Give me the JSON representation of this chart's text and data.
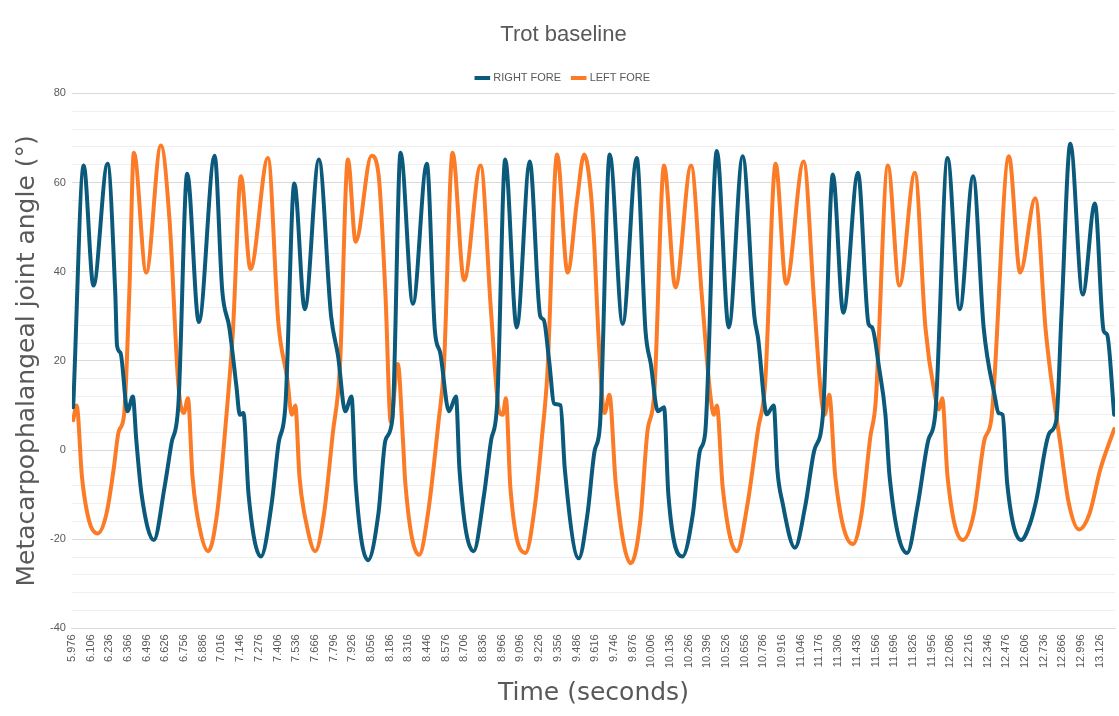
{
  "chart_data": {
    "type": "line",
    "title": "Trot baseline",
    "xlabel": "Time (seconds)",
    "ylabel": "Metacarpophalangeal joint angle (°)",
    "xlim": [
      5.976,
      13.232
    ],
    "xticks": [
      5.976,
      6.106,
      6.236,
      6.366,
      6.496,
      6.626,
      6.756,
      6.886,
      7.016,
      7.146,
      7.276,
      7.406,
      7.536,
      7.666,
      7.796,
      7.926,
      8.056,
      8.186,
      8.316,
      8.446,
      8.576,
      8.706,
      8.836,
      8.966,
      9.096,
      9.226,
      9.356,
      9.486,
      9.616,
      9.746,
      9.876,
      10.006,
      10.136,
      10.266,
      10.396,
      10.526,
      10.656,
      10.786,
      10.916,
      11.046,
      11.176,
      11.306,
      11.436,
      11.566,
      11.696,
      11.826,
      11.956,
      12.086,
      12.216,
      12.346,
      12.476,
      12.606,
      12.736,
      12.866,
      12.996,
      13.126
    ],
    "ylim": [
      -40,
      80
    ],
    "yticks": [
      -40,
      {
        "value": -36,
        "label": null
      },
      {
        "value": -32,
        "label": null
      },
      {
        "value": -28,
        "label": null
      },
      {
        "value": -24,
        "label": null
      },
      -20,
      {
        "value": -16,
        "label": null
      },
      {
        "value": -12,
        "label": null
      },
      {
        "value": -8,
        "label": null
      },
      {
        "value": -4,
        "label": null
      },
      0,
      {
        "value": 4,
        "label": null
      },
      {
        "value": 8,
        "label": null
      },
      {
        "value": 12,
        "label": null
      },
      {
        "value": 16,
        "label": null
      },
      20,
      {
        "value": 24,
        "label": null
      },
      {
        "value": 28,
        "label": null
      },
      {
        "value": 32,
        "label": null
      },
      {
        "value": 36,
        "label": null
      },
      40,
      {
        "value": 44,
        "label": null
      },
      {
        "value": 48,
        "label": null
      },
      {
        "value": 52,
        "label": null
      },
      {
        "value": 56,
        "label": null
      },
      60,
      {
        "value": 64,
        "label": null
      },
      {
        "value": 68,
        "label": null
      },
      {
        "value": 72,
        "label": null
      },
      {
        "value": 76,
        "label": null
      },
      80
    ],
    "grid": "y",
    "legend": "top",
    "marker": "none",
    "line_style": "solid",
    "series": [
      {
        "name": "RIGHT FORE",
        "color": "#0b5a7c",
        "x": [
          5.985,
          6.058,
          6.126,
          6.224,
          6.278,
          6.29,
          6.314,
          6.363,
          6.4,
          6.424,
          6.461,
          6.546,
          6.62,
          6.668,
          6.717,
          6.778,
          6.859,
          6.969,
          7.022,
          7.071,
          7.12,
          7.144,
          7.169,
          7.205,
          7.291,
          7.364,
          7.413,
          7.462,
          7.523,
          7.596,
          7.694,
          7.779,
          7.828,
          7.877,
          7.921,
          7.95,
          8.035,
          8.109,
          8.157,
          8.206,
          8.262,
          8.348,
          8.445,
          8.501,
          8.538,
          8.599,
          8.648,
          8.672,
          8.77,
          8.843,
          8.892,
          8.934,
          8.99,
          9.07,
          9.161,
          9.234,
          9.258,
          9.295,
          9.331,
          9.375,
          9.405,
          9.502,
          9.563,
          9.612,
          9.649,
          9.717,
          9.807,
          9.905,
          9.966,
          10.003,
          10.052,
          10.095,
          10.125,
          10.222,
          10.296,
          10.344,
          10.381,
          10.462,
          10.545,
          10.642,
          10.723,
          10.749,
          10.81,
          10.858,
          10.883,
          10.919,
          11.005,
          11.078,
          11.139,
          11.2,
          11.269,
          11.342,
          11.444,
          11.518,
          11.542,
          11.591,
          11.635,
          11.664,
          11.786,
          11.859,
          11.933,
          11.981,
          12.067,
          12.152,
          12.245,
          12.318,
          12.396,
          12.421,
          12.45,
          12.482,
          12.579,
          12.64,
          12.684,
          12.775,
          12.824,
          12.86,
          12.921,
          13.007,
          13.092,
          13.153,
          13.177,
          13.226
        ],
        "values": [
          9.6,
          63.8,
          36.9,
          64.2,
          34.9,
          23.4,
          21.8,
          8.7,
          12,
          2.2,
          -10,
          -20.2,
          -8.4,
          1.4,
          10.4,
          62,
          28.7,
          66,
          35.7,
          27.5,
          14.4,
          7.9,
          8.3,
          -10,
          -23.9,
          -12.4,
          1.4,
          10.4,
          59.8,
          31.6,
          65.2,
          30,
          21,
          8.7,
          12,
          -7.5,
          -24.7,
          -14,
          2.2,
          7.1,
          66.7,
          32.8,
          64.2,
          26.7,
          21.8,
          8.7,
          12,
          -4.4,
          -22.7,
          -10,
          2.2,
          10.4,
          65.2,
          27.5,
          64.7,
          30,
          29.2,
          20.2,
          10.4,
          10,
          -4.4,
          -24.3,
          -14.2,
          -0.2,
          5.5,
          66.3,
          28.3,
          65.5,
          26.7,
          19.3,
          8.7,
          9.6,
          -10,
          -23.9,
          -14.2,
          -0.2,
          3.8,
          67.1,
          27.5,
          65.9,
          30,
          25.1,
          8,
          10,
          -4.4,
          -11.8,
          -21.9,
          -12.4,
          -0.2,
          7.9,
          61.8,
          30.8,
          62.2,
          28.2,
          27.5,
          18.4,
          7.9,
          -6,
          -23.1,
          -12.4,
          2.2,
          7.9,
          65.5,
          31.6,
          61.4,
          27.5,
          12,
          8.3,
          7.9,
          -7.5,
          -20.2,
          -16.6,
          -11.3,
          3.8,
          6.7,
          30.8,
          68.7,
          34.9,
          55.3,
          26.7,
          25.9,
          7.9
        ]
      },
      {
        "name": "LEFT FORE",
        "color": "#fb7b27",
        "x": [
          5.985,
          6.009,
          6.046,
          6.095,
          6.156,
          6.217,
          6.266,
          6.302,
          6.339,
          6.375,
          6.407,
          6.493,
          6.595,
          6.656,
          6.717,
          6.754,
          6.783,
          6.815,
          6.864,
          6.925,
          6.986,
          7.047,
          7.096,
          7.152,
          7.218,
          7.34,
          7.413,
          7.474,
          7.506,
          7.53,
          7.559,
          7.608,
          7.669,
          7.73,
          7.791,
          7.84,
          7.896,
          7.95,
          8.06,
          8.109,
          8.157,
          8.194,
          8.243,
          8.279,
          8.294,
          8.392,
          8.453,
          8.526,
          8.563,
          8.624,
          8.704,
          8.819,
          8.892,
          8.948,
          8.973,
          8.995,
          9.026,
          9.131,
          9.197,
          9.246,
          9.283,
          9.351,
          9.424,
          9.49,
          9.539,
          9.588,
          9.612,
          9.637,
          9.681,
          9.715,
          9.759,
          9.864,
          9.93,
          9.978,
          10.027,
          10.095,
          10.174,
          10.283,
          10.357,
          10.418,
          10.442,
          10.462,
          10.503,
          10.601,
          10.674,
          10.749,
          10.797,
          10.871,
          10.944,
          11.066,
          11.139,
          11.188,
          11.212,
          11.244,
          11.286,
          11.408,
          11.469,
          11.53,
          11.566,
          11.652,
          11.732,
          11.84,
          11.913,
          11.981,
          12.006,
          12.03,
          12.067,
          12.172,
          12.25,
          12.323,
          12.372,
          12.494,
          12.572,
          12.677,
          12.75,
          12.811,
          12.848,
          12.909,
          12.982,
          13.055,
          13.129,
          13.226
        ],
        "values": [
          6.7,
          10,
          -6,
          -15.8,
          -18.7,
          -14.2,
          -4.4,
          4.2,
          7.9,
          34.9,
          66.7,
          39.8,
          68.3,
          51.2,
          14.4,
          8.3,
          11.6,
          -6,
          -17.4,
          -22.7,
          -14.2,
          6.3,
          26.7,
          61.4,
          40.6,
          65.5,
          28.2,
          16,
          7.9,
          10,
          -6,
          -16.6,
          -22.7,
          -14.2,
          3.8,
          18.4,
          65.2,
          46.7,
          66,
          61.8,
          34.9,
          6.3,
          19.3,
          2.2,
          -6.9,
          -23.5,
          -14.2,
          6.3,
          18.4,
          66.7,
          38.1,
          63.8,
          30.8,
          8.7,
          7.9,
          11.6,
          -8.4,
          -23.1,
          -12.4,
          3,
          17,
          66.3,
          39.8,
          56.1,
          66.3,
          56.9,
          44.6,
          26.7,
          8.3,
          12.4,
          -7.5,
          -25.4,
          -15.8,
          3.8,
          12.8,
          63.8,
          36.5,
          63.8,
          34.9,
          12,
          7.9,
          10,
          -8.4,
          -22.7,
          -12.4,
          4.7,
          14.4,
          64.2,
          37.3,
          64.7,
          33.2,
          12,
          7.9,
          12.4,
          -6,
          -21.1,
          -14.2,
          3,
          10.4,
          63.8,
          36.9,
          62.2,
          27.5,
          12,
          9.1,
          11.6,
          -6,
          -20.2,
          -14.2,
          2.2,
          7.1,
          65.9,
          39.8,
          56.5,
          26.7,
          10.4,
          2.2,
          -11.7,
          -17.8,
          -14.2,
          -4.4,
          4.7
        ]
      }
    ]
  }
}
